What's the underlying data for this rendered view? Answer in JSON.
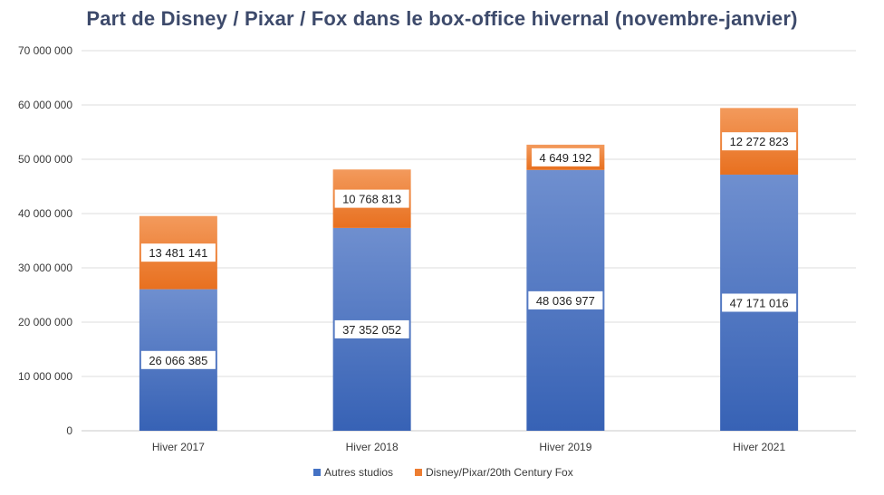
{
  "chart_data": {
    "type": "bar",
    "stacked": true,
    "title": "Part de Disney / Pixar / Fox dans le box-office hivernal (novembre-janvier)",
    "categories": [
      "Hiver 2017",
      "Hiver 2018",
      "Hiver 2019",
      "Hiver 2021"
    ],
    "series": [
      {
        "name": "Autres studios",
        "color": "#4472c4",
        "values": [
          26066385,
          37352052,
          48036977,
          47171016
        ],
        "labels": [
          "26 066 385",
          "37 352 052",
          "48 036 977",
          "47 171 016"
        ]
      },
      {
        "name": "Disney/Pixar/20th Century Fox",
        "color": "#ed7d31",
        "values": [
          13481141,
          10768813,
          4649192,
          12272823
        ],
        "labels": [
          "13 481 141",
          "10 768 813",
          "4 649 192",
          "12 272 823"
        ]
      }
    ],
    "y_ticks": [
      0,
      10000000,
      20000000,
      30000000,
      40000000,
      50000000,
      60000000,
      70000000
    ],
    "y_tick_labels": [
      "0",
      "10 000 000",
      "20 000 000",
      "30 000 000",
      "40 000 000",
      "50 000 000",
      "60 000 000",
      "70 000 000"
    ],
    "ylim": [
      0,
      70000000
    ],
    "xlabel": "",
    "ylabel": "",
    "grid": true,
    "legend_position": "bottom"
  }
}
